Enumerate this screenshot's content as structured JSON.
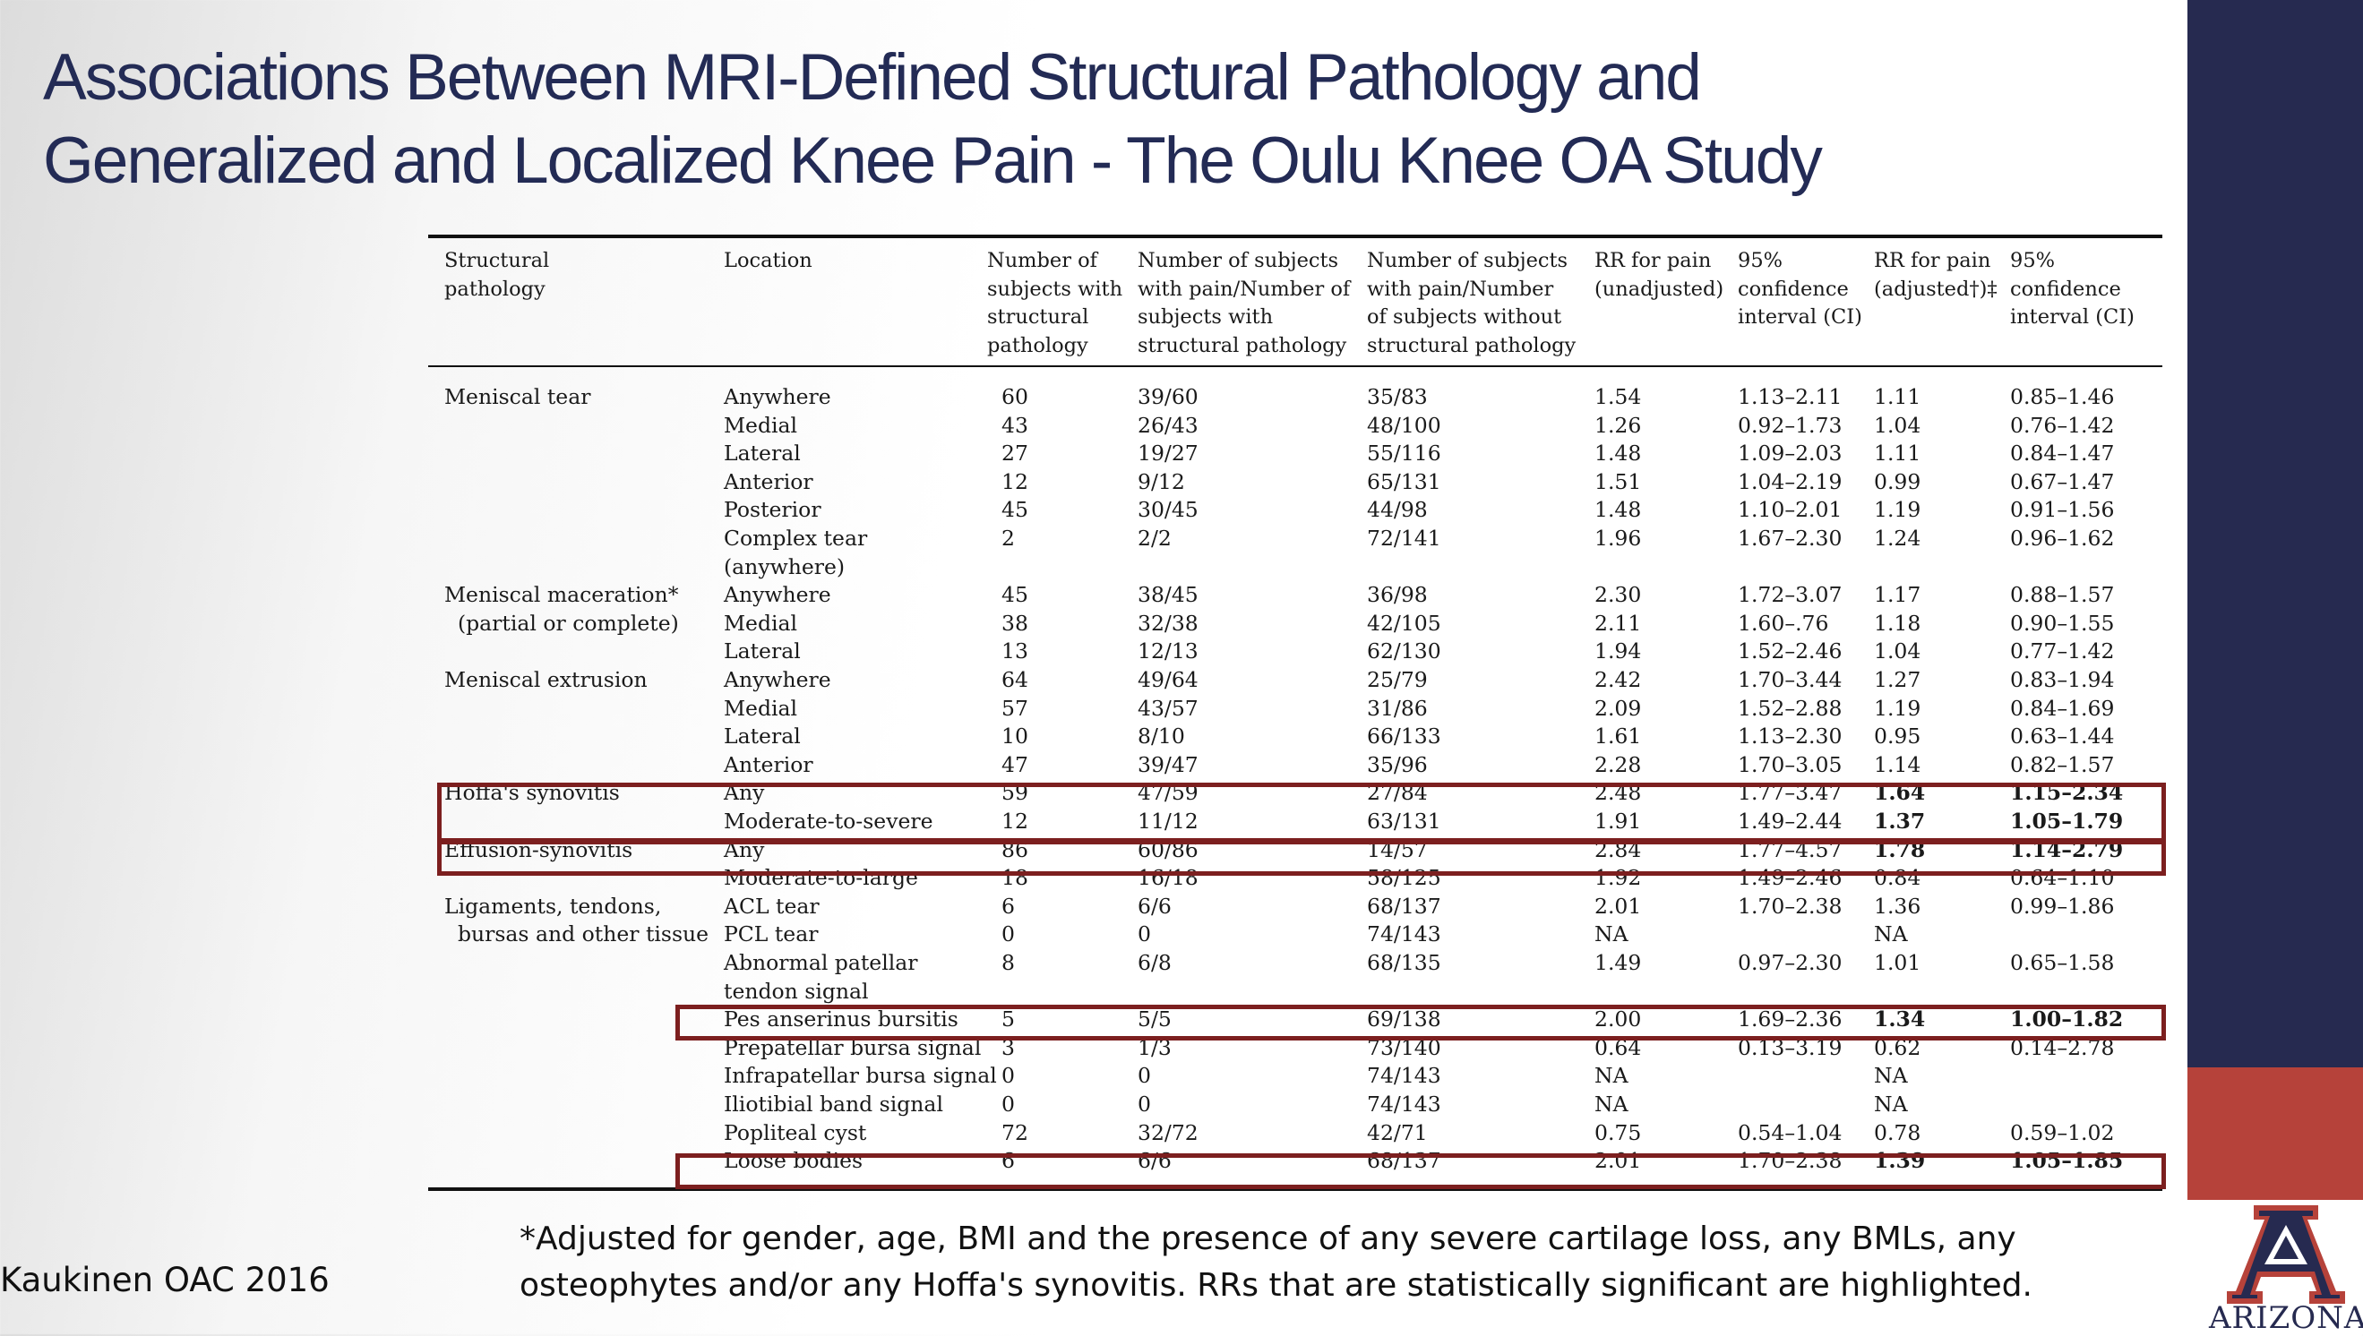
{
  "title": {
    "line1": "Associations Between MRI-Defined Structural Pathology and",
    "line2": "Generalized and Localized Knee Pain - The Oulu Knee OA Study"
  },
  "table": {
    "headers": {
      "pathology": [
        "Structural",
        "pathology"
      ],
      "location": [
        "Location"
      ],
      "n_struct": [
        "Number of",
        "subjects with",
        "structural",
        "pathology"
      ],
      "pain_with": [
        "Number of subjects",
        "with pain/Number of",
        "subjects with",
        "structural pathology"
      ],
      "pain_without": [
        "Number of subjects",
        "with pain/Number",
        "of subjects without",
        "structural pathology"
      ],
      "rr_unadj": [
        "RR for pain",
        "(unadjusted)"
      ],
      "ci_unadj": [
        "95%",
        "confidence",
        "interval (CI)"
      ],
      "rr_adj": [
        "RR for pain",
        "(adjusted†)‡"
      ],
      "ci_adj": [
        "95%",
        "confidence",
        "interval (CI)"
      ]
    },
    "rows": [
      {
        "pathology": "Meniscal tear",
        "location": "Anywhere",
        "n": "60",
        "with": "39/60",
        "without": "35/83",
        "rr": "1.54",
        "ci": "1.13–2.11",
        "rra": "1.11",
        "cia": "0.85–1.46"
      },
      {
        "pathology": "",
        "location": "Medial",
        "n": "43",
        "with": "26/43",
        "without": "48/100",
        "rr": "1.26",
        "ci": "0.92–1.73",
        "rra": "1.04",
        "cia": "0.76–1.42"
      },
      {
        "pathology": "",
        "location": "Lateral",
        "n": "27",
        "with": "19/27",
        "without": "55/116",
        "rr": "1.48",
        "ci": "1.09–2.03",
        "rra": "1.11",
        "cia": "0.84–1.47"
      },
      {
        "pathology": "",
        "location": "Anterior",
        "n": "12",
        "with": "9/12",
        "without": "65/131",
        "rr": "1.51",
        "ci": "1.04–2.19",
        "rra": "0.99",
        "cia": "0.67–1.47"
      },
      {
        "pathology": "",
        "location": "Posterior",
        "n": "45",
        "with": "30/45",
        "without": "44/98",
        "rr": "1.48",
        "ci": "1.10–2.01",
        "rra": "1.19",
        "cia": "0.91–1.56"
      },
      {
        "pathology": "",
        "location": "Complex tear",
        "n": "2",
        "with": "2/2",
        "without": "72/141",
        "rr": "1.96",
        "ci": "1.67–2.30",
        "rra": "1.24",
        "cia": "0.96–1.62"
      },
      {
        "pathology": "",
        "location": "(anywhere)",
        "n": "",
        "with": "",
        "without": "",
        "rr": "",
        "ci": "",
        "rra": "",
        "cia": ""
      },
      {
        "pathology": "Meniscal maceration*",
        "location": "Anywhere",
        "n": "45",
        "with": "38/45",
        "without": "36/98",
        "rr": "2.30",
        "ci": "1.72–3.07",
        "rra": "1.17",
        "cia": "0.88–1.57"
      },
      {
        "pathology": "  (partial or complete)",
        "location": "Medial",
        "n": "38",
        "with": "32/38",
        "without": "42/105",
        "rr": "2.11",
        "ci": "1.60–.76",
        "rra": "1.18",
        "cia": "0.90–1.55"
      },
      {
        "pathology": "",
        "location": "Lateral",
        "n": "13",
        "with": "12/13",
        "without": "62/130",
        "rr": "1.94",
        "ci": "1.52–2.46",
        "rra": "1.04",
        "cia": "0.77–1.42"
      },
      {
        "pathology": "Meniscal extrusion",
        "location": "Anywhere",
        "n": "64",
        "with": "49/64",
        "without": "25/79",
        "rr": "2.42",
        "ci": "1.70–3.44",
        "rra": "1.27",
        "cia": "0.83–1.94"
      },
      {
        "pathology": "",
        "location": "Medial",
        "n": "57",
        "with": "43/57",
        "without": "31/86",
        "rr": "2.09",
        "ci": "1.52–2.88",
        "rra": "1.19",
        "cia": "0.84–1.69"
      },
      {
        "pathology": "",
        "location": "Lateral",
        "n": "10",
        "with": "8/10",
        "without": "66/133",
        "rr": "1.61",
        "ci": "1.13–2.30",
        "rra": "0.95",
        "cia": "0.63–1.44"
      },
      {
        "pathology": "",
        "location": "Anterior",
        "n": "47",
        "with": "39/47",
        "without": "35/96",
        "rr": "2.28",
        "ci": "1.70–3.05",
        "rra": "1.14",
        "cia": "0.82–1.57"
      },
      {
        "pathology": "Hoffa's synovitis",
        "location": "Any",
        "n": "59",
        "with": "47/59",
        "without": "27/84",
        "rr": "2.48",
        "ci": "1.77–3.47",
        "rra": "1.64",
        "cia": "1.15–2.34",
        "bold": true
      },
      {
        "pathology": "",
        "location": "Moderate-to-severe",
        "n": "12",
        "with": "11/12",
        "without": "63/131",
        "rr": "1.91",
        "ci": "1.49–2.44",
        "rra": "1.37",
        "cia": "1.05–1.79",
        "bold": true
      },
      {
        "pathology": "Effusion-synovitis",
        "location": "Any",
        "n": "86",
        "with": "60/86",
        "without": "14/57",
        "rr": "2.84",
        "ci": "1.77–4.57",
        "rra": "1.78",
        "cia": "1.14–2.79",
        "bold": true
      },
      {
        "pathology": "",
        "location": "Moderate-to-large",
        "n": "18",
        "with": "16/18",
        "without": "58/125",
        "rr": "1.92",
        "ci": "1.49–2.46",
        "rra": "0.84",
        "cia": "0.64–1.10"
      },
      {
        "pathology": "Ligaments, tendons,",
        "location": "ACL tear",
        "n": "6",
        "with": "6/6",
        "without": "68/137",
        "rr": "2.01",
        "ci": "1.70–2.38",
        "rra": "1.36",
        "cia": "0.99–1.86"
      },
      {
        "pathology": "  bursas and other tissue",
        "location": "PCL tear",
        "n": "0",
        "with": "0",
        "without": "74/143",
        "rr": "NA",
        "ci": "",
        "rra": "NA",
        "cia": ""
      },
      {
        "pathology": "",
        "location": "Abnormal patellar",
        "n": "8",
        "with": "6/8",
        "without": "68/135",
        "rr": "1.49",
        "ci": "0.97–2.30",
        "rra": "1.01",
        "cia": "0.65–1.58"
      },
      {
        "pathology": "",
        "location": "tendon signal",
        "n": "",
        "with": "",
        "without": "",
        "rr": "",
        "ci": "",
        "rra": "",
        "cia": ""
      },
      {
        "pathology": "",
        "location": "Pes anserinus bursitis",
        "n": "5",
        "with": "5/5",
        "without": "69/138",
        "rr": "2.00",
        "ci": "1.69–2.36",
        "rra": "1.34",
        "cia": "1.00–1.82",
        "bold": true
      },
      {
        "pathology": "",
        "location": "Prepatellar bursa signal",
        "n": "3",
        "with": "1/3",
        "without": "73/140",
        "rr": "0.64",
        "ci": "0.13–3.19",
        "rra": "0.62",
        "cia": "0.14–2.78"
      },
      {
        "pathology": "",
        "location": "Infrapatellar bursa signal",
        "n": "0",
        "with": "0",
        "without": "74/143",
        "rr": "NA",
        "ci": "",
        "rra": "NA",
        "cia": ""
      },
      {
        "pathology": "",
        "location": "Iliotibial band signal",
        "n": "0",
        "with": "0",
        "without": "74/143",
        "rr": "NA",
        "ci": "",
        "rra": "NA",
        "cia": ""
      },
      {
        "pathology": "",
        "location": "Popliteal cyst",
        "n": "72",
        "with": "32/72",
        "without": "42/71",
        "rr": "0.75",
        "ci": "0.54–1.04",
        "rra": "0.78",
        "cia": "0.59–1.02"
      },
      {
        "pathology": "",
        "location": "Loose bodies",
        "n": "6",
        "with": "6/6",
        "without": "68/137",
        "rr": "2.01",
        "ci": "1.70–2.38",
        "rra": "1.39",
        "cia": "1.05–1.85",
        "bold": true
      }
    ]
  },
  "footnote": {
    "line1": "*Adjusted for gender, age, BMI and the presence of any severe cartilage loss, any BMLs, any",
    "line2": "osteophytes and/or any Hoffa's synovitis. RRs that are statistically significant are highlighted."
  },
  "citation": "Kaukinen OAC 2016",
  "logo": {
    "wordmark": "ARIZONA",
    "letter": "A"
  },
  "colors": {
    "title": "#232b55",
    "sidebar": "#262a50",
    "accent": "#b6423a",
    "highlight_box": "#7c1f1f"
  }
}
